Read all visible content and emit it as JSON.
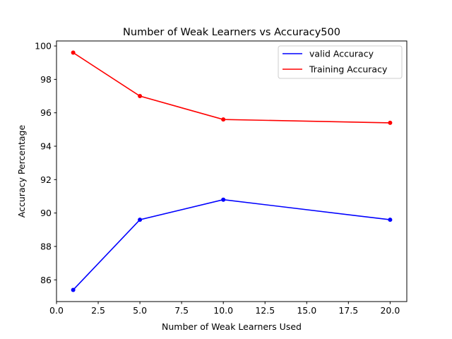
{
  "chart_data": {
    "type": "line",
    "title": "Number of Weak Learners vs Accuracy500",
    "xlabel": "Number of Weak Learners Used",
    "ylabel": "Accuracy Percentage",
    "xlim": [
      0.0,
      21.0
    ],
    "ylim": [
      84.7,
      100.3
    ],
    "x_ticks": [
      0.0,
      2.5,
      5.0,
      7.5,
      10.0,
      12.5,
      15.0,
      17.5,
      20.0
    ],
    "x_tick_labels": [
      "0.0",
      "2.5",
      "5.0",
      "7.5",
      "10.0",
      "12.5",
      "15.0",
      "17.5",
      "20.0"
    ],
    "y_ticks": [
      86,
      88,
      90,
      92,
      94,
      96,
      98,
      100
    ],
    "y_tick_labels": [
      "86",
      "88",
      "90",
      "92",
      "94",
      "96",
      "98",
      "100"
    ],
    "grid": false,
    "legend_position": "top-right",
    "x": [
      1,
      5,
      10,
      20
    ],
    "series": [
      {
        "name": "valid Accuracy",
        "color": "#0000ff",
        "values": [
          85.4,
          89.6,
          90.8,
          89.6
        ]
      },
      {
        "name": "Training Accuracy",
        "color": "#ff0000",
        "values": [
          99.6,
          97.0,
          95.6,
          95.4
        ]
      }
    ]
  }
}
